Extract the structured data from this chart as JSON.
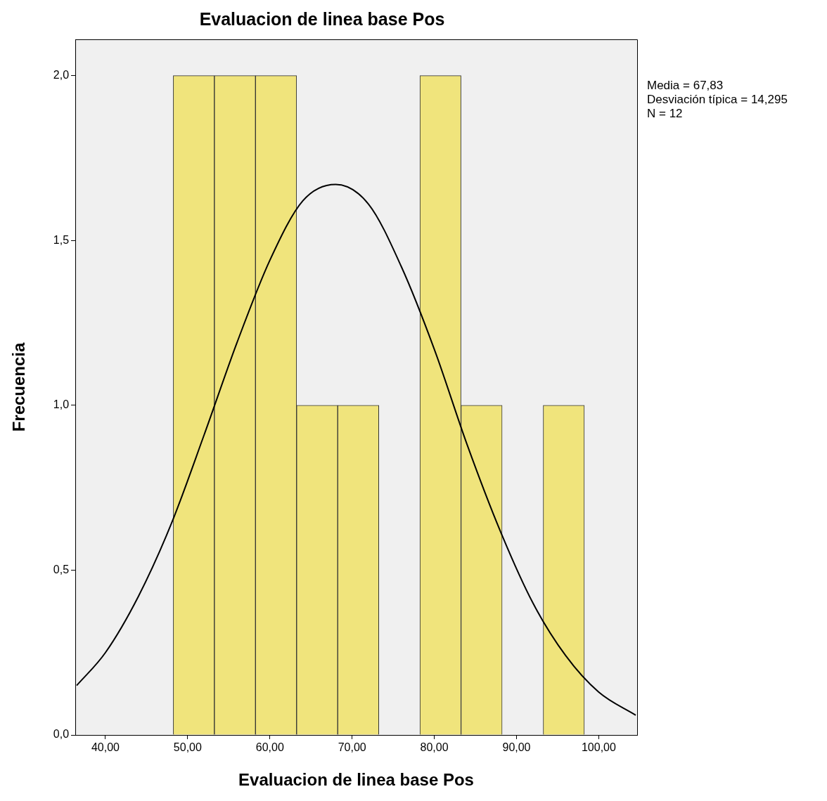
{
  "chart_data": {
    "type": "histogram",
    "title": "Evaluacion de linea base Pos",
    "xlabel": "Evaluacion de linea base Pos",
    "ylabel": "Frecuencia",
    "bins": [
      48.25,
      53.25,
      58.25,
      63.25,
      68.25,
      73.25,
      78.25,
      83.25,
      88.25,
      93.25,
      98.25
    ],
    "values": [
      2,
      2,
      2,
      1,
      1,
      0,
      2,
      1,
      0,
      1
    ],
    "color": "#f0e47c",
    "series": [
      {
        "type": "line",
        "color": "#000000",
        "x": [
          36.5,
          40,
          44,
          48,
          52,
          56,
          60,
          64,
          68,
          72,
          76,
          80,
          84,
          88,
          92,
          96,
          100,
          104.5
        ],
        "values": [
          0.15,
          0.25,
          0.42,
          0.64,
          0.91,
          1.19,
          1.44,
          1.62,
          1.67,
          1.61,
          1.42,
          1.17,
          0.88,
          0.62,
          0.4,
          0.24,
          0.13,
          0.06
        ]
      }
    ],
    "xlim": [
      36.33,
      104.67
    ],
    "ylim": [
      0,
      2.11
    ],
    "xticks": [
      {
        "value": 40,
        "label": "40,00"
      },
      {
        "value": 50,
        "label": "50,00"
      },
      {
        "value": 60,
        "label": "60,00"
      },
      {
        "value": 70,
        "label": "70,00"
      },
      {
        "value": 80,
        "label": "80,00"
      },
      {
        "value": 90,
        "label": "90,00"
      },
      {
        "value": 100,
        "label": "100,00"
      }
    ],
    "yticks": [
      {
        "value": 0,
        "label": "0,0"
      },
      {
        "value": 0.5,
        "label": "0,5"
      },
      {
        "value": 1,
        "label": "1,0"
      },
      {
        "value": 1.5,
        "label": "1,5"
      },
      {
        "value": 2,
        "label": "2,0"
      }
    ],
    "annotations": [
      "Media = 67,83",
      "Desviación típica = 14,295",
      "N = 12"
    ],
    "grid": false,
    "legend": false,
    "marker": "none",
    "line_style": "solid"
  }
}
